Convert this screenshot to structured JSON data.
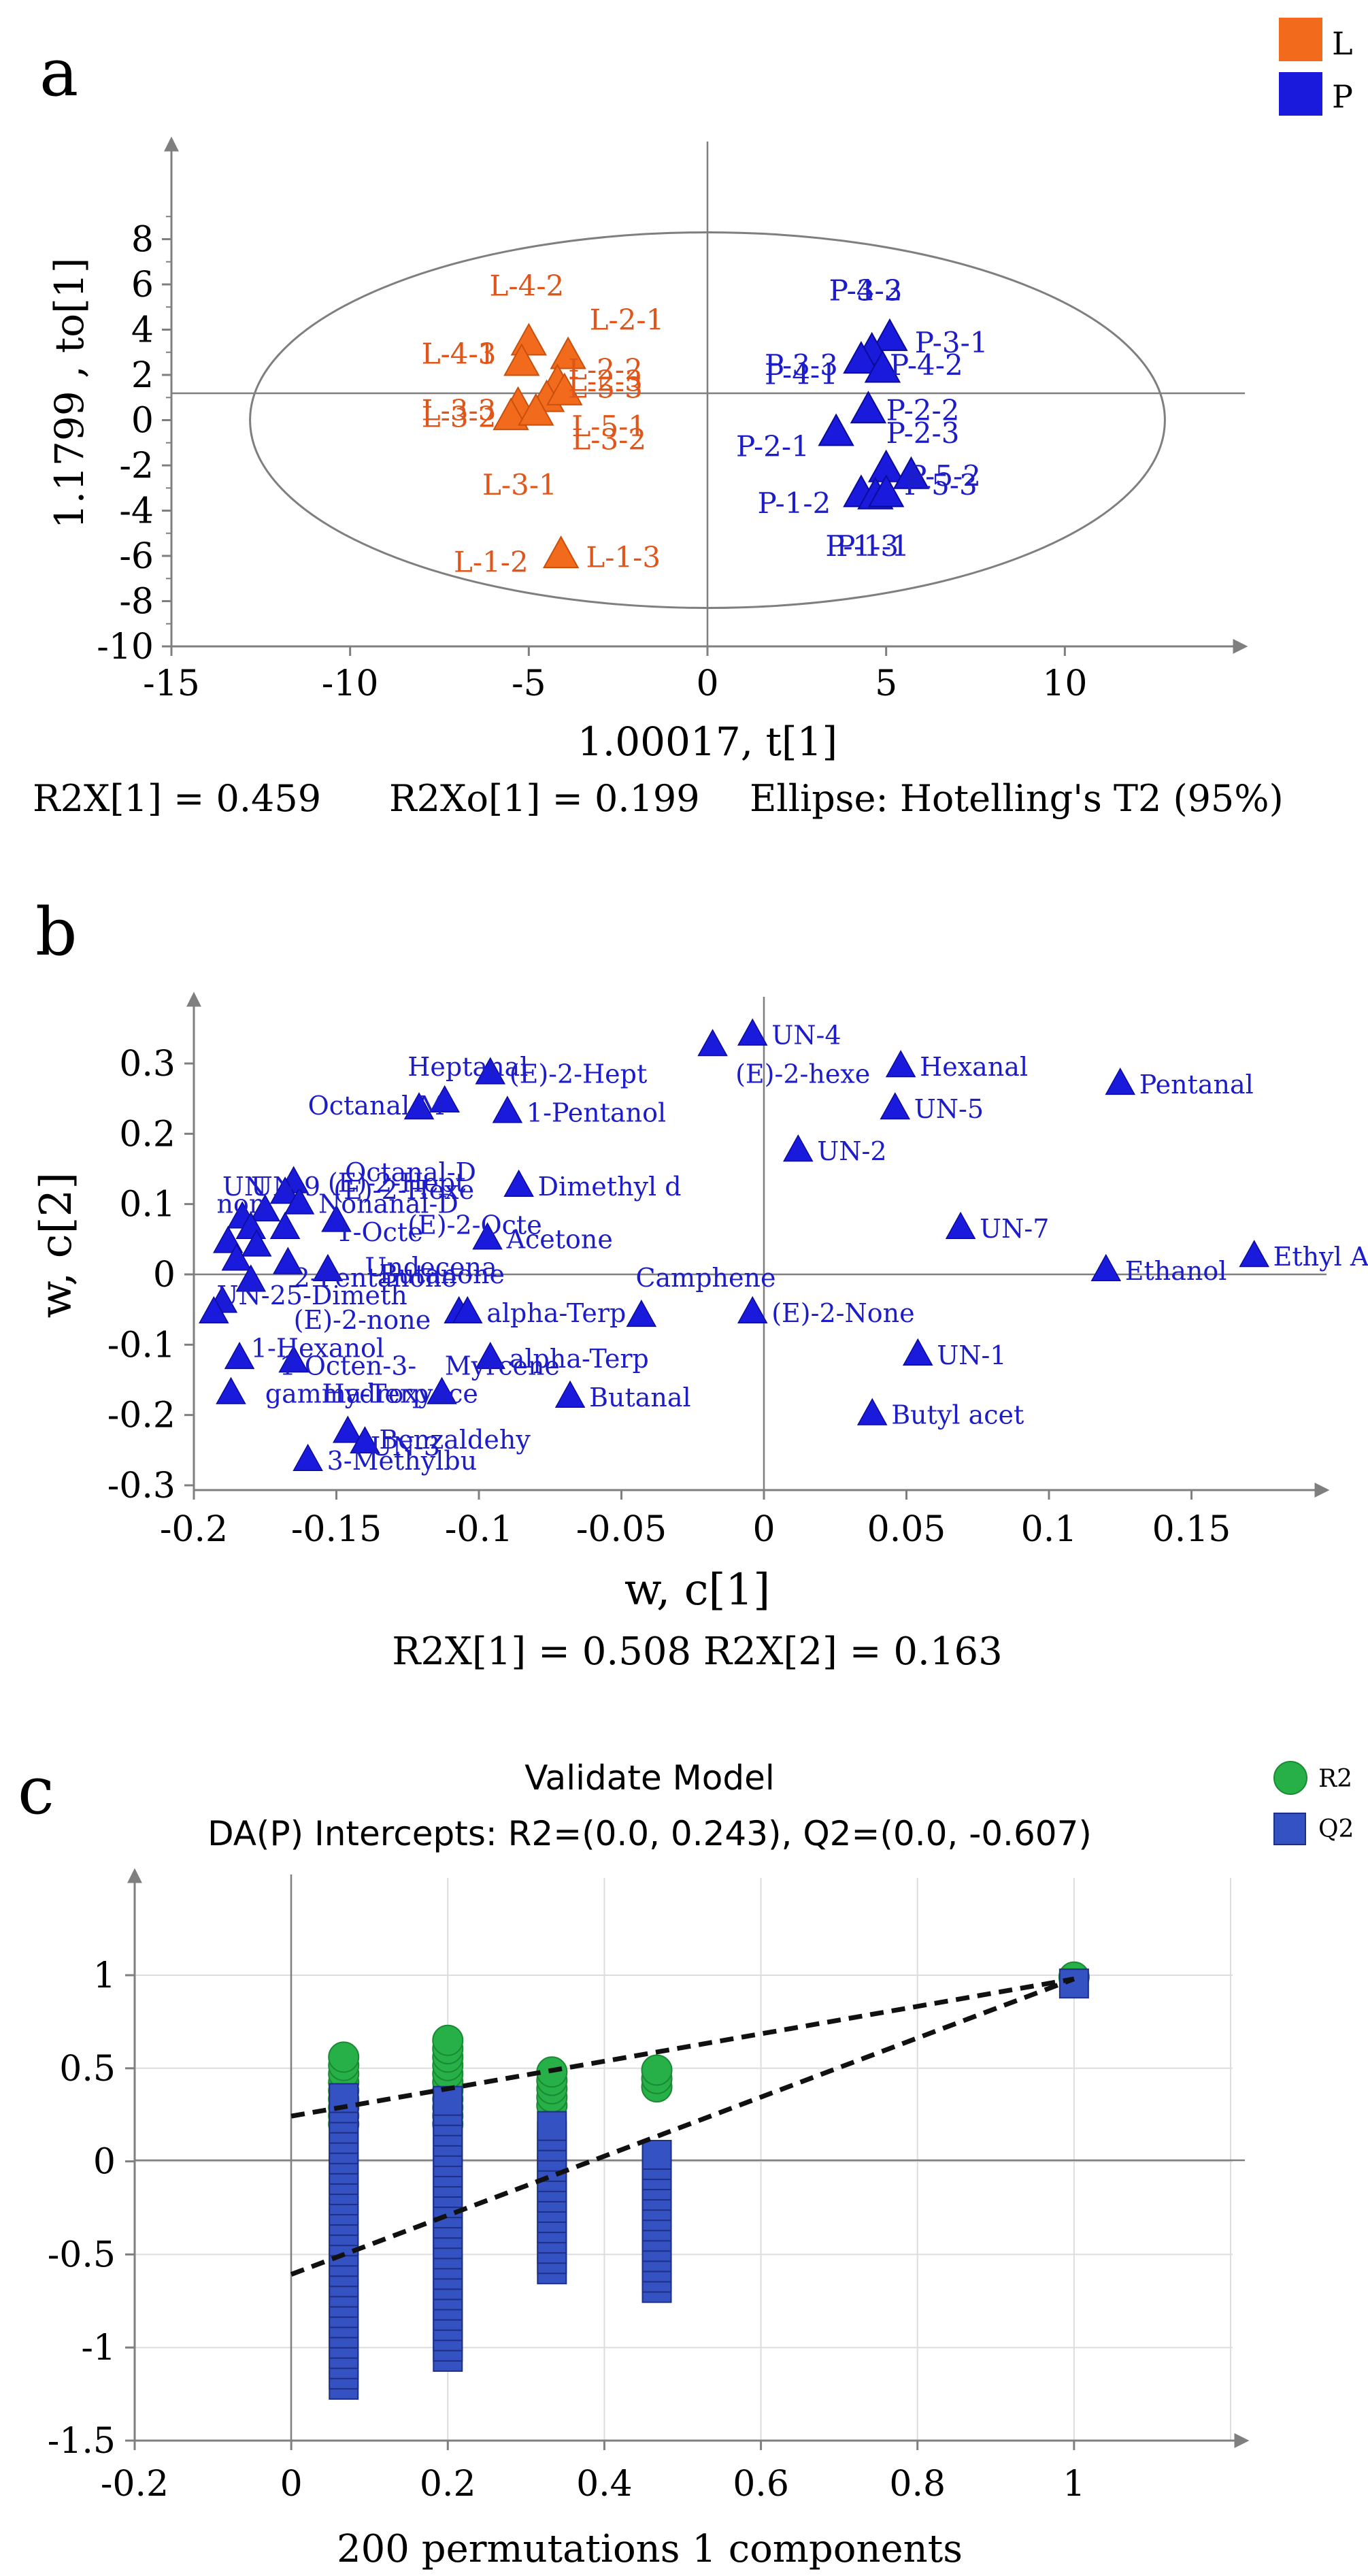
{
  "colors": {
    "L": "#f26b1d",
    "L_stroke": "#c8500c",
    "L_text": "#e0561a",
    "P": "#1a1adc",
    "P_text": "#1c1cc8",
    "R2": "#27b048",
    "R2_stroke": "#1a8a33",
    "Q2": "#3452c2",
    "Q2_stroke": "#1e2f86",
    "axis": "#7f7f7f",
    "grid": "#dddddd"
  },
  "chart_data": [
    {
      "id": "a",
      "panel_label": "a",
      "type": "scatter",
      "title": "",
      "xlabel": "1.00017, t[1]",
      "ylabel": "1.1799 , to[1]",
      "xlim": [
        -15,
        15
      ],
      "ylim": [
        -10,
        10
      ],
      "xticks": [
        -15,
        -10,
        -5,
        0,
        5,
        10
      ],
      "yticks": [
        8,
        6,
        4,
        2,
        0,
        -2,
        -4,
        -6,
        -8,
        -10
      ],
      "legend": {
        "position": "top-right",
        "entries": [
          {
            "label": "L",
            "marker": "square",
            "color": "#f26b1d"
          },
          {
            "label": "P",
            "marker": "square",
            "color": "#1a1adc"
          }
        ]
      },
      "ellipse": {
        "label": "Hotelling's T2 (95%)",
        "cx": 0,
        "cy": 0,
        "rx": 12.8,
        "ry": 8.3
      },
      "footer": {
        "r2x": "R2X[1] = 0.459",
        "r2xo": "R2Xo[1] = 0.199",
        "ellipse": "Ellipse: Hotelling's T2 (95%)"
      },
      "series": [
        {
          "name": "L",
          "points": [
            {
              "x": -5.0,
              "y": 3.4
            },
            {
              "x": -5.2,
              "y": 2.5
            },
            {
              "x": -3.9,
              "y": 2.8
            },
            {
              "x": -4.2,
              "y": 1.6
            },
            {
              "x": -4.5,
              "y": 0.9
            },
            {
              "x": -4.0,
              "y": 1.2
            },
            {
              "x": -5.3,
              "y": 0.6
            },
            {
              "x": -5.5,
              "y": 0.1
            },
            {
              "x": -4.8,
              "y": 0.3
            },
            {
              "x": -4.1,
              "y": -6.0
            }
          ]
        },
        {
          "name": "P",
          "points": [
            {
              "x": 5.1,
              "y": 3.6
            },
            {
              "x": 4.6,
              "y": 3.0
            },
            {
              "x": 4.3,
              "y": 2.6
            },
            {
              "x": 4.9,
              "y": 2.2
            },
            {
              "x": 4.5,
              "y": 0.4
            },
            {
              "x": 3.6,
              "y": -0.6
            },
            {
              "x": 5.0,
              "y": -2.2
            },
            {
              "x": 5.7,
              "y": -2.5
            },
            {
              "x": 4.3,
              "y": -3.3
            },
            {
              "x": 4.7,
              "y": -3.4
            },
            {
              "x": 5.0,
              "y": -3.3
            }
          ]
        }
      ],
      "annotations": [
        {
          "text": "L-4-2",
          "x": -6.1,
          "y": 5.5,
          "series": "L"
        },
        {
          "text": "L-2-1",
          "x": -3.3,
          "y": 4.0,
          "series": "L"
        },
        {
          "text": "L-4-1",
          "x": -8.0,
          "y": 2.5,
          "series": "L"
        },
        {
          "text": "L-4-3",
          "x": -8.0,
          "y": 2.5,
          "series": "L"
        },
        {
          "text": "L-2-2",
          "x": -3.9,
          "y": 1.8,
          "series": "L"
        },
        {
          "text": "L-2-3",
          "x": -3.9,
          "y": 1.3,
          "series": "L"
        },
        {
          "text": "L-5-3",
          "x": -3.9,
          "y": 1.0,
          "series": "L"
        },
        {
          "text": "L-3-3",
          "x": -8.0,
          "y": 0.0,
          "series": "L"
        },
        {
          "text": "L-3-2",
          "x": -8.0,
          "y": -0.3,
          "series": "L"
        },
        {
          "text": "L-5-1",
          "x": -3.8,
          "y": -0.7,
          "series": "L"
        },
        {
          "text": "L-3-2",
          "x": -3.8,
          "y": -1.3,
          "series": "L"
        },
        {
          "text": "L-3-1",
          "x": -6.3,
          "y": -3.3,
          "series": "L"
        },
        {
          "text": "L-1-2",
          "x": -7.1,
          "y": -6.7,
          "series": "L"
        },
        {
          "text": "L-1-3",
          "x": -3.4,
          "y": -6.5,
          "series": "L"
        },
        {
          "text": "P-3-2",
          "x": 3.4,
          "y": 5.3,
          "series": "P"
        },
        {
          "text": "P-4-3",
          "x": 3.4,
          "y": 5.3,
          "series": "P"
        },
        {
          "text": "P-3-1",
          "x": 5.8,
          "y": 3.0,
          "series": "P"
        },
        {
          "text": "P-3-3",
          "x": 1.6,
          "y": 2.0,
          "series": "P"
        },
        {
          "text": "P-4-1",
          "x": 1.6,
          "y": 1.6,
          "series": "P"
        },
        {
          "text": "P-4-2",
          "x": 5.1,
          "y": 2.0,
          "series": "P"
        },
        {
          "text": "P-2-2",
          "x": 5.0,
          "y": 0.0,
          "series": "P"
        },
        {
          "text": "P-2-3",
          "x": 5.0,
          "y": -1.0,
          "series": "P"
        },
        {
          "text": "P-2-1",
          "x": 0.8,
          "y": -1.6,
          "series": "P"
        },
        {
          "text": "P-5-2",
          "x": 5.6,
          "y": -2.9,
          "series": "P"
        },
        {
          "text": "P-5-3",
          "x": 5.5,
          "y": -3.3,
          "series": "P"
        },
        {
          "text": "P-1-2",
          "x": 1.4,
          "y": -4.1,
          "series": "P"
        },
        {
          "text": "P-1-3",
          "x": 3.3,
          "y": -6.0,
          "series": "P"
        },
        {
          "text": "P-1-1",
          "x": 3.6,
          "y": -6.0,
          "series": "P"
        }
      ]
    },
    {
      "id": "b",
      "panel_label": "b",
      "type": "scatter",
      "title": "",
      "xlabel": "w, c[1]",
      "ylabel": "w, c[2]",
      "xlim": [
        -0.2,
        0.2
      ],
      "ylim": [
        -0.3,
        0.35
      ],
      "xticks": [
        -0.2,
        -0.15,
        -0.1,
        -0.05,
        0,
        0.05,
        0.1,
        0.15
      ],
      "yticks": [
        0.3,
        0.2,
        0.1,
        0,
        -0.1,
        -0.2,
        -0.3
      ],
      "footer": {
        "r2x": "R2X[1] = 0.508 R2X[2] = 0.163"
      },
      "points": [
        {
          "x": -0.018,
          "y": 0.325,
          "label": ""
        },
        {
          "x": -0.004,
          "y": 0.34,
          "label": "UN-4"
        },
        {
          "x": 0.048,
          "y": 0.295,
          "label": "Hexanal"
        },
        {
          "x": 0.125,
          "y": 0.27,
          "label": "Pentanal"
        },
        {
          "x": 0.046,
          "y": 0.235,
          "label": "UN-5"
        },
        {
          "x": 0.012,
          "y": 0.175,
          "label": "UN-2"
        },
        {
          "x": 0.069,
          "y": 0.065,
          "label": "UN-7"
        },
        {
          "x": 0.172,
          "y": 0.025,
          "label": "Ethyl Acet"
        },
        {
          "x": 0.12,
          "y": 0.005,
          "label": "Ethanol"
        },
        {
          "x": -0.004,
          "y": -0.055,
          "label": "(E)-2-None"
        },
        {
          "x": 0.054,
          "y": -0.115,
          "label": "UN-1"
        },
        {
          "x": 0.038,
          "y": -0.2,
          "label": "Butyl acet"
        },
        {
          "x": -0.096,
          "y": 0.285,
          "label": "(E)-2-Hept"
        },
        {
          "x": -0.112,
          "y": 0.245,
          "label": ""
        },
        {
          "x": -0.121,
          "y": 0.235,
          "label": ""
        },
        {
          "x": -0.09,
          "y": 0.23,
          "label": "1-Pentanol"
        },
        {
          "x": -0.086,
          "y": 0.125,
          "label": "Dimethyl d"
        },
        {
          "x": -0.097,
          "y": 0.05,
          "label": "Acetone"
        },
        {
          "x": -0.043,
          "y": -0.06,
          "label": ""
        },
        {
          "x": -0.107,
          "y": -0.055,
          "label": ""
        },
        {
          "x": -0.104,
          "y": -0.055,
          "label": "alpha-Terp"
        },
        {
          "x": -0.096,
          "y": -0.12,
          "label": "alpha-Terp"
        },
        {
          "x": -0.068,
          "y": -0.175,
          "label": "Butanal"
        },
        {
          "x": -0.113,
          "y": -0.17,
          "label": ""
        },
        {
          "x": -0.165,
          "y": 0.13,
          "label": ""
        },
        {
          "x": -0.168,
          "y": 0.115,
          "label": ""
        },
        {
          "x": -0.163,
          "y": 0.1,
          "label": "Nonanal-D"
        },
        {
          "x": -0.175,
          "y": 0.09,
          "label": ""
        },
        {
          "x": -0.183,
          "y": 0.08,
          "label": ""
        },
        {
          "x": -0.18,
          "y": 0.065,
          "label": ""
        },
        {
          "x": -0.168,
          "y": 0.065,
          "label": ""
        },
        {
          "x": -0.15,
          "y": 0.075,
          "label": ""
        },
        {
          "x": -0.188,
          "y": 0.045,
          "label": ""
        },
        {
          "x": -0.178,
          "y": 0.04,
          "label": ""
        },
        {
          "x": -0.185,
          "y": 0.02,
          "label": ""
        },
        {
          "x": -0.167,
          "y": 0.015,
          "label": ""
        },
        {
          "x": -0.153,
          "y": 0.005,
          "label": ""
        },
        {
          "x": -0.18,
          "y": -0.01,
          "label": ""
        },
        {
          "x": -0.19,
          "y": -0.04,
          "label": ""
        },
        {
          "x": -0.193,
          "y": -0.055,
          "label": ""
        },
        {
          "x": -0.184,
          "y": -0.12,
          "label": ""
        },
        {
          "x": -0.165,
          "y": -0.125,
          "label": ""
        },
        {
          "x": -0.187,
          "y": -0.17,
          "label": ""
        },
        {
          "x": -0.146,
          "y": -0.225,
          "label": ""
        },
        {
          "x": -0.14,
          "y": -0.24,
          "label": ""
        },
        {
          "x": -0.16,
          "y": -0.265,
          "label": "3-Methylbu"
        }
      ],
      "labels": [
        {
          "text": "Heptanal",
          "x": -0.125,
          "y": 0.295
        },
        {
          "text": "(E)-2-hexe",
          "x": -0.01,
          "y": 0.285
        },
        {
          "text": "Octanal-M",
          "x": -0.16,
          "y": 0.24
        },
        {
          "text": "Octanal-D",
          "x": -0.147,
          "y": 0.145
        },
        {
          "text": "(E)-2-Hept",
          "x": -0.153,
          "y": 0.13
        },
        {
          "text": "(E)-2-Hexe",
          "x": -0.151,
          "y": 0.12
        },
        {
          "text": "UN-9",
          "x": -0.18,
          "y": 0.125
        },
        {
          "text": "UN",
          "x": -0.19,
          "y": 0.125
        },
        {
          "text": "non",
          "x": -0.192,
          "y": 0.1
        },
        {
          "text": "(E)-2-Octe",
          "x": -0.125,
          "y": 0.07
        },
        {
          "text": "1-Octe",
          "x": -0.15,
          "y": 0.06
        },
        {
          "text": "Undecena",
          "x": -0.14,
          "y": 0.01
        },
        {
          "text": "Butanone",
          "x": -0.135,
          "y": 0.0
        },
        {
          "text": "2-Pentanone",
          "x": -0.165,
          "y": -0.005
        },
        {
          "text": "Camphene",
          "x": -0.045,
          "y": -0.005
        },
        {
          "text": "UN-25-Dimeth",
          "x": -0.192,
          "y": -0.03
        },
        {
          "text": "(E)-2-none",
          "x": -0.165,
          "y": -0.065
        },
        {
          "text": "1-Hexanol",
          "x": -0.18,
          "y": -0.105
        },
        {
          "text": "1-Octen-3-",
          "x": -0.17,
          "y": -0.13
        },
        {
          "text": "Myrcene",
          "x": -0.112,
          "y": -0.13
        },
        {
          "text": "gamma-Terp",
          "x": -0.175,
          "y": -0.17
        },
        {
          "text": "Hydroxyace",
          "x": -0.155,
          "y": -0.17
        },
        {
          "text": "Benzaldehy",
          "x": -0.135,
          "y": -0.235
        },
        {
          "text": "UN-3",
          "x": -0.138,
          "y": -0.245
        }
      ]
    },
    {
      "id": "c",
      "panel_label": "c",
      "type": "scatter",
      "title": "Validate Model",
      "subtitle": "DA(P) Intercepts: R2=(0.0, 0.243), Q2=(0.0, -0.607)",
      "xlabel": "200 permutations 1 components",
      "ylabel": "",
      "xlim": [
        -0.2,
        1.2
      ],
      "ylim": [
        -1.5,
        1.3
      ],
      "xticks": [
        -0.2,
        0,
        0.2,
        0.4,
        0.6,
        0.8,
        1
      ],
      "yticks": [
        1,
        0.5,
        0,
        -0.5,
        -1,
        -1.5
      ],
      "grid": true,
      "legend": {
        "position": "top-right",
        "entries": [
          {
            "label": "R2",
            "marker": "circle",
            "color": "#27b048"
          },
          {
            "label": "Q2",
            "marker": "square",
            "color": "#3452c2"
          }
        ]
      },
      "regression_lines": [
        {
          "name": "R2",
          "from": [
            0,
            0.243
          ],
          "to": [
            1,
            0.98
          ]
        },
        {
          "name": "Q2",
          "from": [
            0,
            -0.607
          ],
          "to": [
            1,
            0.98
          ]
        }
      ],
      "series": [
        {
          "name": "R2",
          "groups": [
            {
              "x": 0.067,
              "y_min": 0.2,
              "y_max": 0.6
            },
            {
              "x": 0.2,
              "y_min": 0.2,
              "y_max": 0.65
            },
            {
              "x": 0.333,
              "y_min": 0.3,
              "y_max": 0.52
            },
            {
              "x": 0.467,
              "y_min": 0.4,
              "y_max": 0.52
            }
          ],
          "actual": {
            "x": 1,
            "y": 0.99
          }
        },
        {
          "name": "Q2",
          "groups": [
            {
              "x": 0.067,
              "y_min": -1.2,
              "y_max": 0.35
            },
            {
              "x": 0.2,
              "y_min": -1.05,
              "y_max": 0.35
            },
            {
              "x": 0.333,
              "y_min": -0.58,
              "y_max": 0.2
            },
            {
              "x": 0.467,
              "y_min": -0.68,
              "y_max": 0.05
            }
          ],
          "actual": {
            "x": 1,
            "y": 0.97
          }
        }
      ]
    }
  ]
}
